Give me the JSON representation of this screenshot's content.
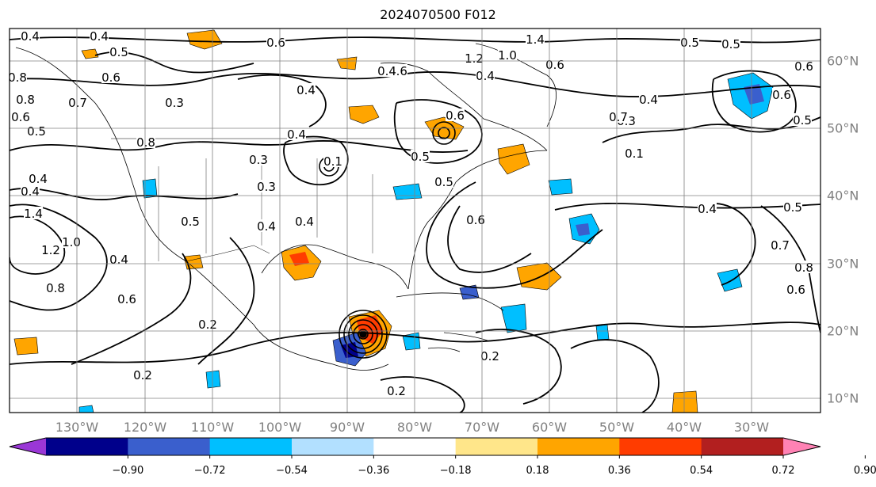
{
  "title": "2024070500 F012",
  "map": {
    "lon_labels": [
      "130°W",
      "120°W",
      "110°W",
      "100°W",
      "90°W",
      "80°W",
      "70°W",
      "60°W",
      "50°W",
      "40°W",
      "30°W"
    ],
    "lat_labels": [
      "60°N",
      "50°N",
      "40°N",
      "30°N",
      "20°N",
      "10°N"
    ],
    "contour_labels": [
      "0.4",
      "0.4",
      "0.5",
      "0.6",
      "0.6",
      "0.3",
      "0.4",
      "0.6",
      "0.4",
      "1.2",
      "1.0",
      "1.4",
      "0.6",
      "0.8",
      "0.5",
      "0.4",
      "0.7",
      "0.5",
      "0.6",
      "0.5",
      "0.6",
      "0.4",
      "0.3",
      "0.1",
      "0.5",
      "0.4",
      "0.6",
      "0.4",
      "0.3",
      "0.4",
      "1.4",
      "1.2",
      "1.0",
      "0.8",
      "0.4",
      "0.6",
      "0.2",
      "0.8",
      "0.4",
      "0.5",
      "0.2",
      "0.2",
      "0.7",
      "0.8",
      "0.6",
      "0.5",
      "0.6",
      "0.4",
      "0.3",
      "0.1",
      "0.5",
      "0.7",
      "0.5",
      "0.8",
      "0.6",
      "0.4",
      "0.2"
    ],
    "colors": {
      "coastline": "#000000",
      "contour": "#000000",
      "grid": "#808080"
    }
  },
  "colorbar": {
    "labels": [
      "−0.90",
      "−0.72",
      "−0.54",
      "−0.36",
      "−0.18",
      "0.18",
      "0.36",
      "0.54",
      "0.72",
      "0.90"
    ],
    "colors": [
      "#9a37d6",
      "#00008b",
      "#3a5fcd",
      "#00bfff",
      "#b2e0ff",
      "#ffffff",
      "#ffe68a",
      "#ffa500",
      "#ff3c00",
      "#b21f1f",
      "#ff82b4"
    ]
  }
}
